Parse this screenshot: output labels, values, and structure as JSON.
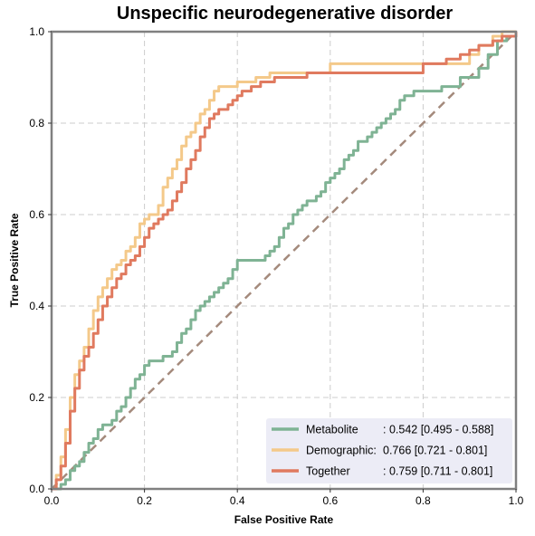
{
  "chart_data": {
    "type": "line",
    "title": "Unspecific neurodegenerative disorder",
    "xlabel": "False Positive Rate",
    "ylabel": "True Positive Rate",
    "xlim": [
      0,
      1
    ],
    "ylim": [
      0,
      1
    ],
    "xticks": [
      "0.0",
      "0.2",
      "0.4",
      "0.6",
      "0.8",
      "1.0"
    ],
    "yticks": [
      "0.0",
      "0.2",
      "0.4",
      "0.6",
      "0.8",
      "1.0"
    ],
    "grid": true,
    "legend_position": "lower-right",
    "series": [
      {
        "name": "Metabolite",
        "legend_name": "Metabolite",
        "legend_value": ": 0.542 [0.495 - 0.588]",
        "color": "#7fb394",
        "x": [
          0.0,
          0.01,
          0.02,
          0.03,
          0.04,
          0.05,
          0.06,
          0.07,
          0.08,
          0.09,
          0.1,
          0.11,
          0.12,
          0.13,
          0.14,
          0.15,
          0.16,
          0.17,
          0.18,
          0.19,
          0.2,
          0.21,
          0.22,
          0.23,
          0.24,
          0.25,
          0.26,
          0.27,
          0.28,
          0.29,
          0.3,
          0.31,
          0.32,
          0.33,
          0.34,
          0.35,
          0.36,
          0.37,
          0.38,
          0.39,
          0.4,
          0.41,
          0.42,
          0.43,
          0.44,
          0.45,
          0.46,
          0.47,
          0.48,
          0.49,
          0.5,
          0.51,
          0.52,
          0.53,
          0.54,
          0.55,
          0.56,
          0.57,
          0.58,
          0.59,
          0.6,
          0.61,
          0.62,
          0.63,
          0.64,
          0.65,
          0.66,
          0.67,
          0.68,
          0.69,
          0.7,
          0.71,
          0.72,
          0.73,
          0.74,
          0.75,
          0.76,
          0.77,
          0.78,
          0.79,
          0.8,
          0.82,
          0.84,
          0.86,
          0.88,
          0.9,
          0.92,
          0.94,
          0.96,
          0.98,
          1.0
        ],
        "y": [
          0.0,
          0.0,
          0.01,
          0.02,
          0.04,
          0.05,
          0.06,
          0.08,
          0.1,
          0.11,
          0.13,
          0.14,
          0.14,
          0.15,
          0.17,
          0.18,
          0.2,
          0.22,
          0.24,
          0.25,
          0.27,
          0.28,
          0.28,
          0.28,
          0.29,
          0.29,
          0.3,
          0.32,
          0.34,
          0.35,
          0.37,
          0.39,
          0.4,
          0.41,
          0.42,
          0.43,
          0.44,
          0.45,
          0.46,
          0.48,
          0.5,
          0.5,
          0.5,
          0.5,
          0.5,
          0.5,
          0.51,
          0.52,
          0.53,
          0.55,
          0.57,
          0.58,
          0.6,
          0.61,
          0.62,
          0.63,
          0.63,
          0.64,
          0.65,
          0.67,
          0.68,
          0.69,
          0.7,
          0.72,
          0.73,
          0.74,
          0.76,
          0.76,
          0.77,
          0.78,
          0.79,
          0.8,
          0.81,
          0.82,
          0.83,
          0.85,
          0.86,
          0.86,
          0.87,
          0.87,
          0.87,
          0.87,
          0.88,
          0.88,
          0.9,
          0.9,
          0.92,
          0.95,
          0.98,
          0.99,
          1.0
        ]
      },
      {
        "name": "Demographic",
        "legend_name": "Demographic:",
        "legend_value": " 0.766 [0.721 - 0.801]",
        "color": "#f4c98a",
        "x": [
          0.0,
          0.01,
          0.02,
          0.03,
          0.04,
          0.05,
          0.06,
          0.07,
          0.08,
          0.09,
          0.1,
          0.11,
          0.12,
          0.13,
          0.14,
          0.15,
          0.16,
          0.17,
          0.18,
          0.19,
          0.2,
          0.21,
          0.22,
          0.23,
          0.24,
          0.25,
          0.26,
          0.27,
          0.28,
          0.29,
          0.3,
          0.31,
          0.32,
          0.33,
          0.34,
          0.35,
          0.36,
          0.37,
          0.38,
          0.39,
          0.4,
          0.41,
          0.42,
          0.43,
          0.44,
          0.45,
          0.46,
          0.47,
          0.48,
          0.5,
          0.55,
          0.6,
          0.6,
          0.65,
          0.7,
          0.75,
          0.8,
          0.82,
          0.85,
          0.88,
          0.9,
          0.92,
          0.95,
          0.97,
          1.0
        ],
        "y": [
          0.0,
          0.03,
          0.07,
          0.13,
          0.2,
          0.25,
          0.28,
          0.31,
          0.35,
          0.39,
          0.42,
          0.44,
          0.46,
          0.48,
          0.49,
          0.5,
          0.52,
          0.53,
          0.55,
          0.58,
          0.59,
          0.6,
          0.6,
          0.62,
          0.66,
          0.68,
          0.7,
          0.72,
          0.75,
          0.77,
          0.78,
          0.8,
          0.82,
          0.83,
          0.85,
          0.87,
          0.88,
          0.88,
          0.88,
          0.88,
          0.89,
          0.89,
          0.89,
          0.89,
          0.9,
          0.9,
          0.9,
          0.91,
          0.91,
          0.91,
          0.91,
          0.91,
          0.93,
          0.93,
          0.93,
          0.93,
          0.93,
          0.93,
          0.93,
          0.93,
          0.95,
          0.97,
          0.99,
          1.0,
          1.0
        ]
      },
      {
        "name": "Together",
        "legend_name": "Together",
        "legend_value": ": 0.759 [0.711 - 0.801]",
        "color": "#e07a5f",
        "x": [
          0.0,
          0.01,
          0.02,
          0.03,
          0.04,
          0.05,
          0.06,
          0.07,
          0.08,
          0.09,
          0.1,
          0.11,
          0.12,
          0.13,
          0.14,
          0.15,
          0.16,
          0.17,
          0.18,
          0.19,
          0.2,
          0.21,
          0.22,
          0.23,
          0.24,
          0.25,
          0.26,
          0.27,
          0.28,
          0.29,
          0.3,
          0.31,
          0.32,
          0.33,
          0.34,
          0.35,
          0.36,
          0.37,
          0.38,
          0.39,
          0.4,
          0.41,
          0.42,
          0.43,
          0.44,
          0.45,
          0.46,
          0.47,
          0.48,
          0.5,
          0.55,
          0.6,
          0.65,
          0.7,
          0.75,
          0.8,
          0.82,
          0.85,
          0.88,
          0.9,
          0.92,
          0.95,
          0.97,
          1.0
        ],
        "y": [
          0.0,
          0.02,
          0.05,
          0.1,
          0.17,
          0.22,
          0.26,
          0.29,
          0.31,
          0.34,
          0.37,
          0.4,
          0.42,
          0.44,
          0.46,
          0.47,
          0.49,
          0.5,
          0.51,
          0.53,
          0.55,
          0.57,
          0.58,
          0.59,
          0.6,
          0.61,
          0.63,
          0.65,
          0.67,
          0.7,
          0.72,
          0.74,
          0.77,
          0.79,
          0.81,
          0.82,
          0.83,
          0.83,
          0.84,
          0.85,
          0.86,
          0.87,
          0.87,
          0.88,
          0.88,
          0.89,
          0.89,
          0.89,
          0.9,
          0.9,
          0.91,
          0.91,
          0.91,
          0.91,
          0.91,
          0.93,
          0.93,
          0.94,
          0.95,
          0.96,
          0.97,
          0.98,
          0.99,
          1.0
        ]
      }
    ],
    "reference_line": {
      "color": "#a48a7c",
      "x": [
        0,
        1
      ],
      "y": [
        0,
        1
      ]
    }
  }
}
